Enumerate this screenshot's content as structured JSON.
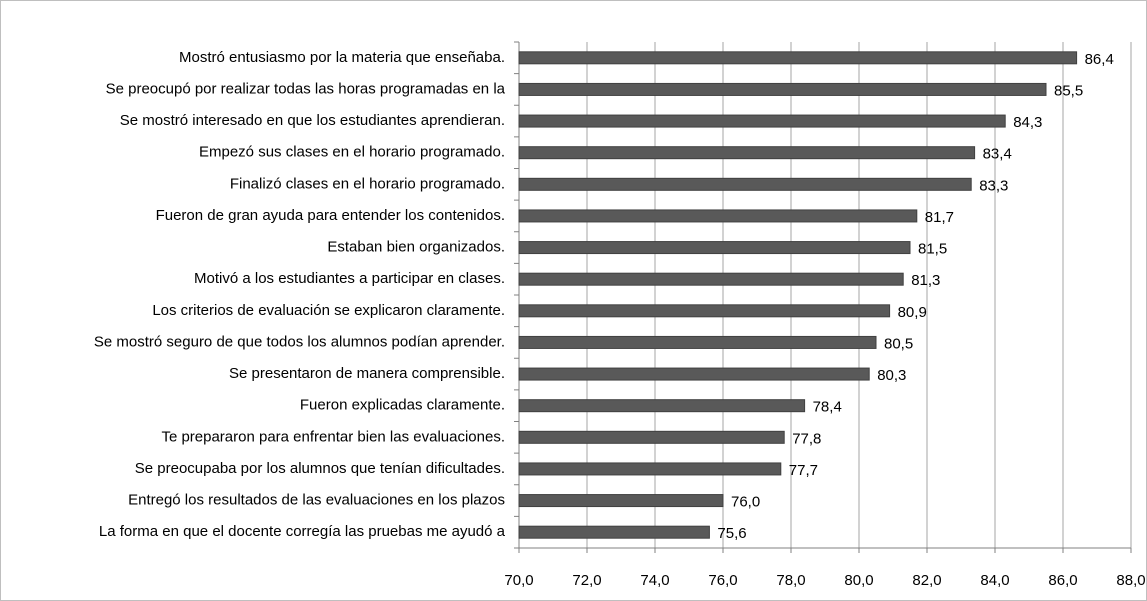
{
  "chart_data": {
    "type": "bar",
    "orientation": "horizontal",
    "categories": [
      "Mostró entusiasmo por la materia que enseñaba.",
      "Se preocupó por realizar todas las horas programadas en la",
      "Se mostró interesado en que los estudiantes aprendieran.",
      "Empezó sus clases en el horario programado.",
      "Finalizó clases en el horario programado.",
      "Fueron de gran ayuda para entender los contenidos.",
      "Estaban bien organizados.",
      "Motivó a los estudiantes a participar en clases.",
      "Los criterios de evaluación se explicaron claramente.",
      "Se mostró seguro de que todos los alumnos podían aprender.",
      "Se presentaron de manera comprensible.",
      "Fueron explicadas claramente.",
      "Te prepararon para enfrentar bien las evaluaciones.",
      "Se preocupaba por los alumnos que tenían dificultades.",
      "Entregó los resultados de las evaluaciones en los plazos",
      "La forma en que el docente corregía las pruebas me ayudó a"
    ],
    "values": [
      86.4,
      85.5,
      84.3,
      83.4,
      83.3,
      81.7,
      81.5,
      81.3,
      80.9,
      80.5,
      80.3,
      78.4,
      77.8,
      77.7,
      76.0,
      75.6
    ],
    "value_labels": [
      "86,4",
      "85,5",
      "84,3",
      "83,4",
      "83,3",
      "81,7",
      "81,5",
      "81,3",
      "80,9",
      "80,5",
      "80,3",
      "78,4",
      "77,8",
      "77,7",
      "76,0",
      "75,6"
    ],
    "color": "#595959",
    "xlim": [
      70,
      88
    ],
    "xticks": [
      {
        "value": 70,
        "label": "70,0"
      },
      {
        "value": 72,
        "label": "72,0"
      },
      {
        "value": 74,
        "label": "74,0"
      },
      {
        "value": 76,
        "label": "76,0"
      },
      {
        "value": 78,
        "label": "78,0"
      },
      {
        "value": 80,
        "label": "80,0"
      },
      {
        "value": 82,
        "label": "82,0"
      },
      {
        "value": 84,
        "label": "84,0"
      },
      {
        "value": 86,
        "label": "86,0"
      },
      {
        "value": 88,
        "label": "88,0"
      }
    ],
    "grid": true
  }
}
